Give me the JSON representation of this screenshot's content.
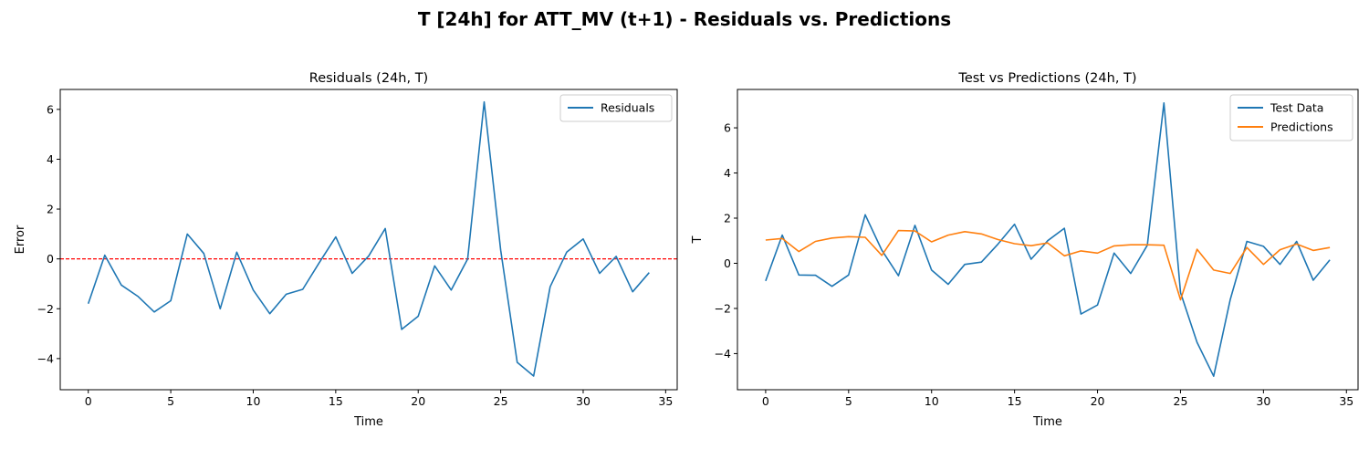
{
  "figure": {
    "suptitle": "T [24h] for ATT_MV (t+1) - Residuals vs. Predictions"
  },
  "colors": {
    "residuals": "#1f77b4",
    "test": "#1f77b4",
    "predictions": "#ff7f0e",
    "zero_line": "#ff0000"
  },
  "chart_data": [
    {
      "type": "line",
      "title": "Residuals (24h, T)",
      "xlabel": "Time",
      "ylabel": "Error",
      "xlim": [
        -1.7,
        35.7
      ],
      "ylim": [
        -5.25,
        6.8
      ],
      "xticks": [
        0,
        5,
        10,
        15,
        20,
        25,
        30,
        35
      ],
      "yticks": [
        -4,
        -2,
        0,
        2,
        4,
        6
      ],
      "grid": false,
      "legend": "upper right",
      "hline": 0,
      "series": [
        {
          "name": "Residuals",
          "x": [
            0,
            1,
            2,
            3,
            4,
            5,
            6,
            7,
            8,
            9,
            10,
            11,
            12,
            13,
            14,
            15,
            16,
            17,
            18,
            19,
            20,
            21,
            22,
            23,
            24,
            25,
            26,
            27,
            28,
            29,
            30,
            31,
            32,
            33,
            34
          ],
          "values": [
            -1.8,
            0.15,
            -1.05,
            -1.5,
            -2.13,
            -1.68,
            1.0,
            0.22,
            -2.0,
            0.27,
            -1.25,
            -2.2,
            -1.42,
            -1.22,
            -0.15,
            0.88,
            -0.58,
            0.12,
            1.22,
            -2.83,
            -2.3,
            -0.28,
            -1.25,
            0.0,
            6.3,
            0.35,
            -4.15,
            -4.7,
            -1.12,
            0.27,
            0.8,
            -0.58,
            0.1,
            -1.32,
            -0.55
          ]
        }
      ]
    },
    {
      "type": "line",
      "title": "Test vs Predictions (24h, T)",
      "xlabel": "Time",
      "ylabel": "T",
      "xlim": [
        -1.7,
        35.7
      ],
      "ylim": [
        -5.6,
        7.7
      ],
      "xticks": [
        0,
        5,
        10,
        15,
        20,
        25,
        30,
        35
      ],
      "yticks": [
        -4,
        -2,
        0,
        2,
        4,
        6
      ],
      "grid": false,
      "legend": "upper right",
      "series": [
        {
          "name": "Test Data",
          "x": [
            0,
            1,
            2,
            3,
            4,
            5,
            6,
            7,
            8,
            9,
            10,
            11,
            12,
            13,
            14,
            15,
            16,
            17,
            18,
            19,
            20,
            21,
            22,
            23,
            24,
            25,
            26,
            27,
            28,
            29,
            30,
            31,
            32,
            33,
            34
          ],
          "values": [
            -0.78,
            1.25,
            -0.52,
            -0.53,
            -1.02,
            -0.52,
            2.15,
            0.58,
            -0.55,
            1.68,
            -0.3,
            -0.93,
            -0.05,
            0.05,
            0.85,
            1.73,
            0.18,
            1.0,
            1.55,
            -2.25,
            -1.85,
            0.45,
            -0.45,
            0.8,
            7.1,
            -1.3,
            -3.5,
            -5.0,
            -1.6,
            0.97,
            0.75,
            -0.05,
            0.97,
            -0.75,
            0.15
          ]
        },
        {
          "name": "Predictions",
          "x": [
            0,
            1,
            2,
            3,
            4,
            5,
            6,
            7,
            8,
            9,
            10,
            11,
            12,
            13,
            14,
            15,
            16,
            17,
            18,
            19,
            20,
            21,
            22,
            23,
            24,
            25,
            26,
            27,
            28,
            29,
            30,
            31,
            32,
            33,
            34
          ],
          "values": [
            1.03,
            1.1,
            0.52,
            0.97,
            1.12,
            1.18,
            1.15,
            0.35,
            1.45,
            1.43,
            0.95,
            1.25,
            1.4,
            1.3,
            1.05,
            0.87,
            0.78,
            0.9,
            0.33,
            0.55,
            0.45,
            0.77,
            0.82,
            0.82,
            0.8,
            -1.62,
            0.62,
            -0.3,
            -0.45,
            0.7,
            -0.05,
            0.6,
            0.85,
            0.57,
            0.7
          ]
        }
      ]
    }
  ]
}
